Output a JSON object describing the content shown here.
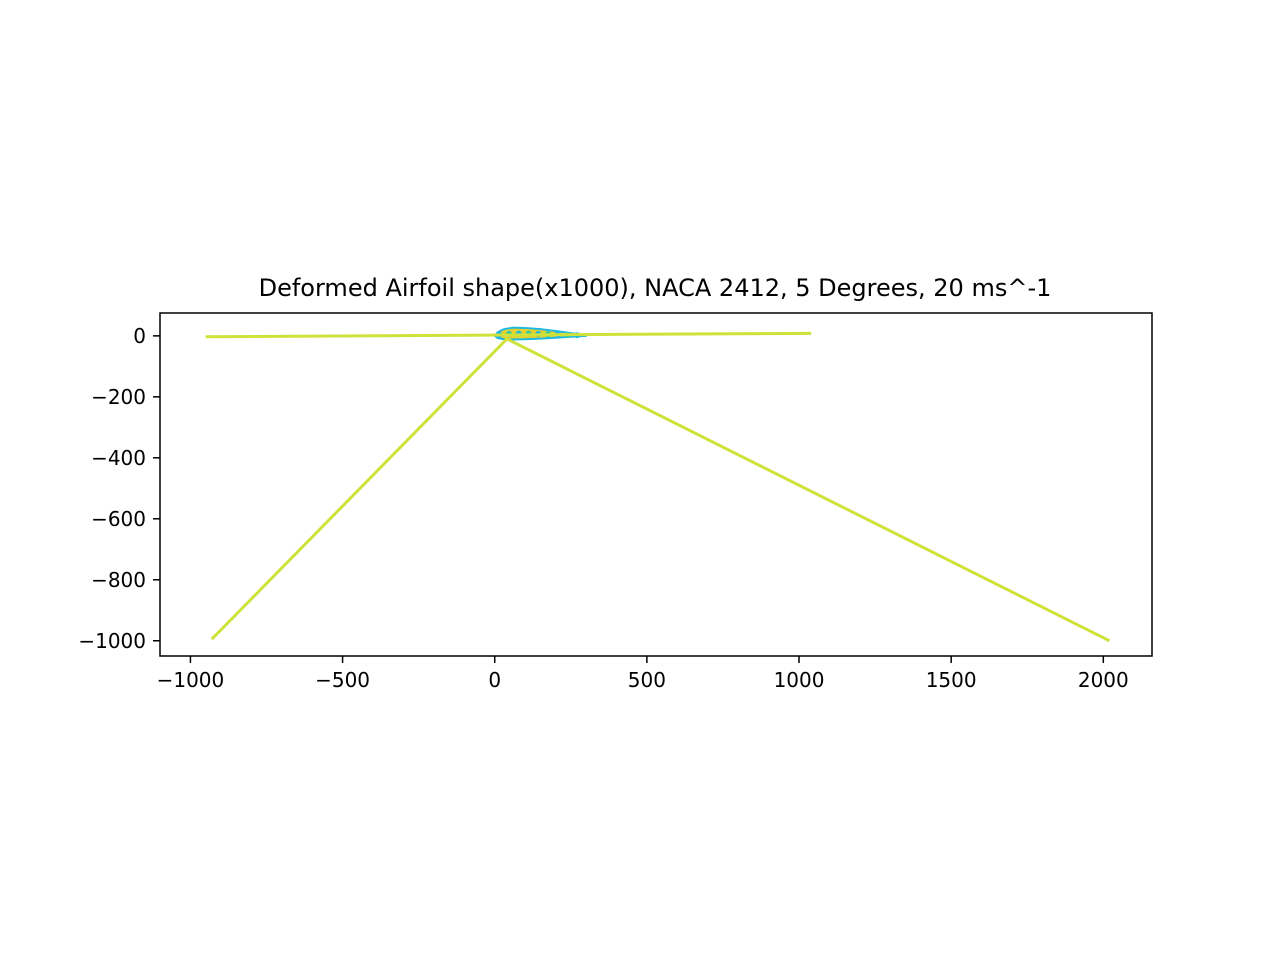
{
  "chart_data": {
    "type": "line",
    "title": "Deformed Airfoil shape(x1000), NACA 2412, 5 Degrees, 20 ms^-1",
    "xlabel": "",
    "ylabel": "",
    "xlim": [
      -1100,
      2160
    ],
    "ylim": [
      -1050,
      75
    ],
    "x_ticks": [
      -1000,
      -500,
      0,
      500,
      1000,
      1500,
      2000
    ],
    "x_tick_labels": [
      "−1000",
      "−500",
      "0",
      "500",
      "1000",
      "1500",
      "2000"
    ],
    "y_ticks": [
      0,
      -200,
      -400,
      -600,
      -800,
      -1000
    ],
    "y_tick_labels": [
      "0",
      "−200",
      "−400",
      "−600",
      "−800",
      "−1000"
    ],
    "grid": false,
    "series": [
      {
        "color": "#cfe23a",
        "x": [
          -950,
          40,
          1040
        ],
        "y": [
          -3,
          3,
          8
        ]
      },
      {
        "color": "#cfe23a",
        "x": [
          -930,
          40,
          2020
        ],
        "y": [
          -995,
          -10,
          -1000
        ]
      }
    ],
    "airfoil": {
      "colors": [
        "#e8d12c",
        "#1fb8e0",
        "#2fc9a6"
      ],
      "x": [
        0,
        10,
        30,
        60,
        100,
        150,
        200,
        250,
        300
      ],
      "y_upper": [
        0,
        12,
        22,
        27,
        26,
        22,
        16,
        9,
        2
      ],
      "y_lower": [
        0,
        -7,
        -11,
        -12,
        -11,
        -9,
        -6,
        -3,
        0
      ]
    }
  }
}
